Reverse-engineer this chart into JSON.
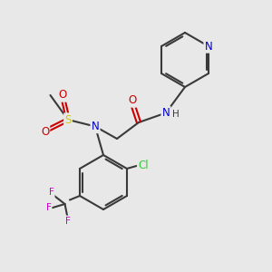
{
  "bg_color": "#e8e8e8",
  "bond_color": "#3a3a3a",
  "figsize": [
    3.0,
    3.0
  ],
  "dpi": 100,
  "colors": {
    "N": "#0000cc",
    "O": "#cc0000",
    "S": "#cccc00",
    "Cl": "#33cc33",
    "F": "#cc00cc",
    "C": "#3a3a3a"
  }
}
